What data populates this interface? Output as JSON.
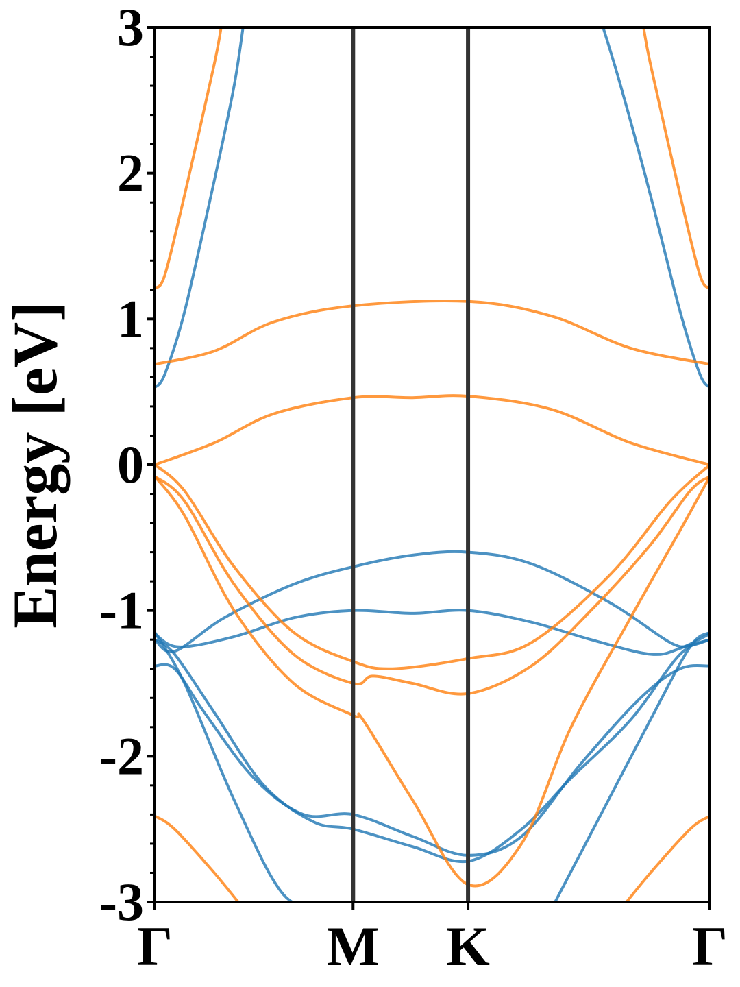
{
  "chart_data": {
    "type": "line",
    "title": "",
    "xlabel": "",
    "ylabel": "Energy [eV]",
    "ylim": [
      -3,
      3
    ],
    "xlim": [
      0,
      2.8
    ],
    "grid": false,
    "legend": "none",
    "y_ticks": [
      -3,
      -2,
      -1,
      0,
      1,
      2,
      3
    ],
    "y_tick_labels": [
      "-3",
      "-2",
      "-1",
      "0",
      "1",
      "2",
      "3"
    ],
    "k_points": [
      {
        "label": "Γ",
        "x": 0
      },
      {
        "label": "M",
        "x": 1.0
      },
      {
        "label": "K",
        "x": 1.58
      },
      {
        "label": "Γ",
        "x": 2.8
      }
    ],
    "colors": {
      "spin_a": "#1f77b4",
      "spin_b": "#ff7f0e",
      "frame": "#000000",
      "kline": "#333333"
    },
    "series": [
      {
        "group": "spin_a",
        "points": [
          [
            0,
            0.53
          ],
          [
            0.05,
            0.62
          ],
          [
            0.15,
            1.05
          ],
          [
            0.3,
            1.95
          ],
          [
            0.4,
            2.6
          ],
          [
            0.45,
            3.05
          ]
        ]
      },
      {
        "group": "spin_a",
        "points": [
          [
            2.8,
            0.53
          ],
          [
            2.75,
            0.62
          ],
          [
            2.65,
            1.05
          ],
          [
            2.5,
            1.85
          ],
          [
            2.35,
            2.6
          ],
          [
            2.25,
            3.05
          ]
        ]
      },
      {
        "group": "spin_a",
        "points": [
          [
            0,
            -1.2
          ],
          [
            0.1,
            -1.28
          ],
          [
            0.35,
            -1.05
          ],
          [
            0.7,
            -0.82
          ],
          [
            1.0,
            -0.7
          ],
          [
            1.3,
            -0.62
          ],
          [
            1.58,
            -0.6
          ],
          [
            1.9,
            -0.68
          ],
          [
            2.3,
            -0.95
          ],
          [
            2.6,
            -1.22
          ],
          [
            2.7,
            -1.24
          ],
          [
            2.8,
            -1.2
          ]
        ]
      },
      {
        "group": "spin_a",
        "points": [
          [
            0,
            -1.16
          ],
          [
            0.12,
            -1.25
          ],
          [
            0.4,
            -1.18
          ],
          [
            0.7,
            -1.05
          ],
          [
            1.0,
            -1.0
          ],
          [
            1.3,
            -1.02
          ],
          [
            1.58,
            -1.0
          ],
          [
            1.9,
            -1.08
          ],
          [
            2.2,
            -1.2
          ],
          [
            2.5,
            -1.3
          ],
          [
            2.65,
            -1.26
          ],
          [
            2.8,
            -1.16
          ]
        ]
      },
      {
        "group": "spin_a",
        "points": [
          [
            0,
            -1.38
          ],
          [
            0.1,
            -1.4
          ],
          [
            0.25,
            -1.7
          ],
          [
            0.5,
            -2.15
          ],
          [
            0.75,
            -2.4
          ],
          [
            1.0,
            -2.4
          ],
          [
            1.3,
            -2.55
          ],
          [
            1.58,
            -2.68
          ],
          [
            1.85,
            -2.55
          ],
          [
            2.15,
            -2.05
          ],
          [
            2.45,
            -1.6
          ],
          [
            2.65,
            -1.4
          ],
          [
            2.8,
            -1.38
          ]
        ]
      },
      {
        "group": "spin_a",
        "points": [
          [
            0,
            -1.2
          ],
          [
            0.1,
            -1.3
          ],
          [
            0.3,
            -1.7
          ],
          [
            0.55,
            -2.2
          ],
          [
            0.8,
            -2.45
          ],
          [
            1.0,
            -2.5
          ],
          [
            1.3,
            -2.62
          ],
          [
            1.58,
            -2.72
          ],
          [
            1.85,
            -2.5
          ],
          [
            2.1,
            -2.15
          ],
          [
            2.4,
            -1.75
          ],
          [
            2.65,
            -1.3
          ],
          [
            2.8,
            -1.2
          ]
        ]
      },
      {
        "group": "spin_a",
        "points": [
          [
            0,
            -1.15
          ],
          [
            0.15,
            -1.5
          ],
          [
            0.4,
            -2.3
          ],
          [
            0.65,
            -2.95
          ],
          [
            0.88,
            -3.05
          ]
        ]
      },
      {
        "group": "spin_a",
        "points": [
          [
            2.0,
            -3.05
          ],
          [
            2.25,
            -2.4
          ],
          [
            2.5,
            -1.75
          ],
          [
            2.7,
            -1.25
          ],
          [
            2.8,
            -1.15
          ]
        ]
      },
      {
        "group": "spin_b",
        "points": [
          [
            0,
            1.21
          ],
          [
            0.05,
            1.3
          ],
          [
            0.15,
            1.85
          ],
          [
            0.3,
            2.75
          ],
          [
            0.34,
            3.05
          ]
        ]
      },
      {
        "group": "spin_b",
        "points": [
          [
            2.8,
            1.21
          ],
          [
            2.75,
            1.3
          ],
          [
            2.65,
            1.85
          ],
          [
            2.5,
            2.75
          ],
          [
            2.46,
            3.05
          ]
        ]
      },
      {
        "group": "spin_b",
        "points": [
          [
            0,
            0.69
          ],
          [
            0.3,
            0.78
          ],
          [
            0.6,
            0.98
          ],
          [
            1.0,
            1.09
          ],
          [
            1.58,
            1.12
          ],
          [
            2.0,
            1.02
          ],
          [
            2.4,
            0.8
          ],
          [
            2.8,
            0.69
          ]
        ]
      },
      {
        "group": "spin_b",
        "points": [
          [
            0,
            0.0
          ],
          [
            0.3,
            0.15
          ],
          [
            0.6,
            0.35
          ],
          [
            1.0,
            0.46
          ],
          [
            1.3,
            0.46
          ],
          [
            1.58,
            0.47
          ],
          [
            2.0,
            0.38
          ],
          [
            2.4,
            0.15
          ],
          [
            2.8,
            0.0
          ]
        ]
      },
      {
        "group": "spin_b",
        "points": [
          [
            0,
            0.0
          ],
          [
            0.15,
            -0.18
          ],
          [
            0.4,
            -0.7
          ],
          [
            0.7,
            -1.15
          ],
          [
            1.0,
            -1.35
          ],
          [
            1.2,
            -1.4
          ],
          [
            1.58,
            -1.33
          ],
          [
            1.9,
            -1.22
          ],
          [
            2.3,
            -0.75
          ],
          [
            2.6,
            -0.25
          ],
          [
            2.8,
            0.0
          ]
        ]
      },
      {
        "group": "spin_b",
        "points": [
          [
            0,
            -0.08
          ],
          [
            0.15,
            -0.25
          ],
          [
            0.4,
            -0.82
          ],
          [
            0.7,
            -1.3
          ],
          [
            1.0,
            -1.5
          ],
          [
            1.1,
            -1.45
          ],
          [
            1.3,
            -1.5
          ],
          [
            1.58,
            -1.57
          ],
          [
            1.9,
            -1.38
          ],
          [
            2.2,
            -1.0
          ],
          [
            2.5,
            -0.55
          ],
          [
            2.7,
            -0.18
          ],
          [
            2.8,
            -0.08
          ]
        ]
      },
      {
        "group": "spin_b",
        "points": [
          [
            0,
            -0.08
          ],
          [
            0.15,
            -0.35
          ],
          [
            0.4,
            -1.0
          ],
          [
            0.7,
            -1.5
          ],
          [
            1.0,
            -1.72
          ],
          [
            1.05,
            -1.75
          ],
          [
            1.3,
            -2.3
          ],
          [
            1.58,
            -2.88
          ],
          [
            1.85,
            -2.6
          ],
          [
            2.1,
            -1.8
          ],
          [
            2.4,
            -1.05
          ],
          [
            2.65,
            -0.45
          ],
          [
            2.8,
            -0.08
          ]
        ]
      },
      {
        "group": "spin_b",
        "points": [
          [
            0,
            -2.41
          ],
          [
            0.1,
            -2.5
          ],
          [
            0.3,
            -2.8
          ],
          [
            0.45,
            -3.05
          ]
        ]
      },
      {
        "group": "spin_b",
        "points": [
          [
            2.8,
            -2.41
          ],
          [
            2.7,
            -2.5
          ],
          [
            2.5,
            -2.8
          ],
          [
            2.35,
            -3.05
          ]
        ]
      }
    ]
  }
}
